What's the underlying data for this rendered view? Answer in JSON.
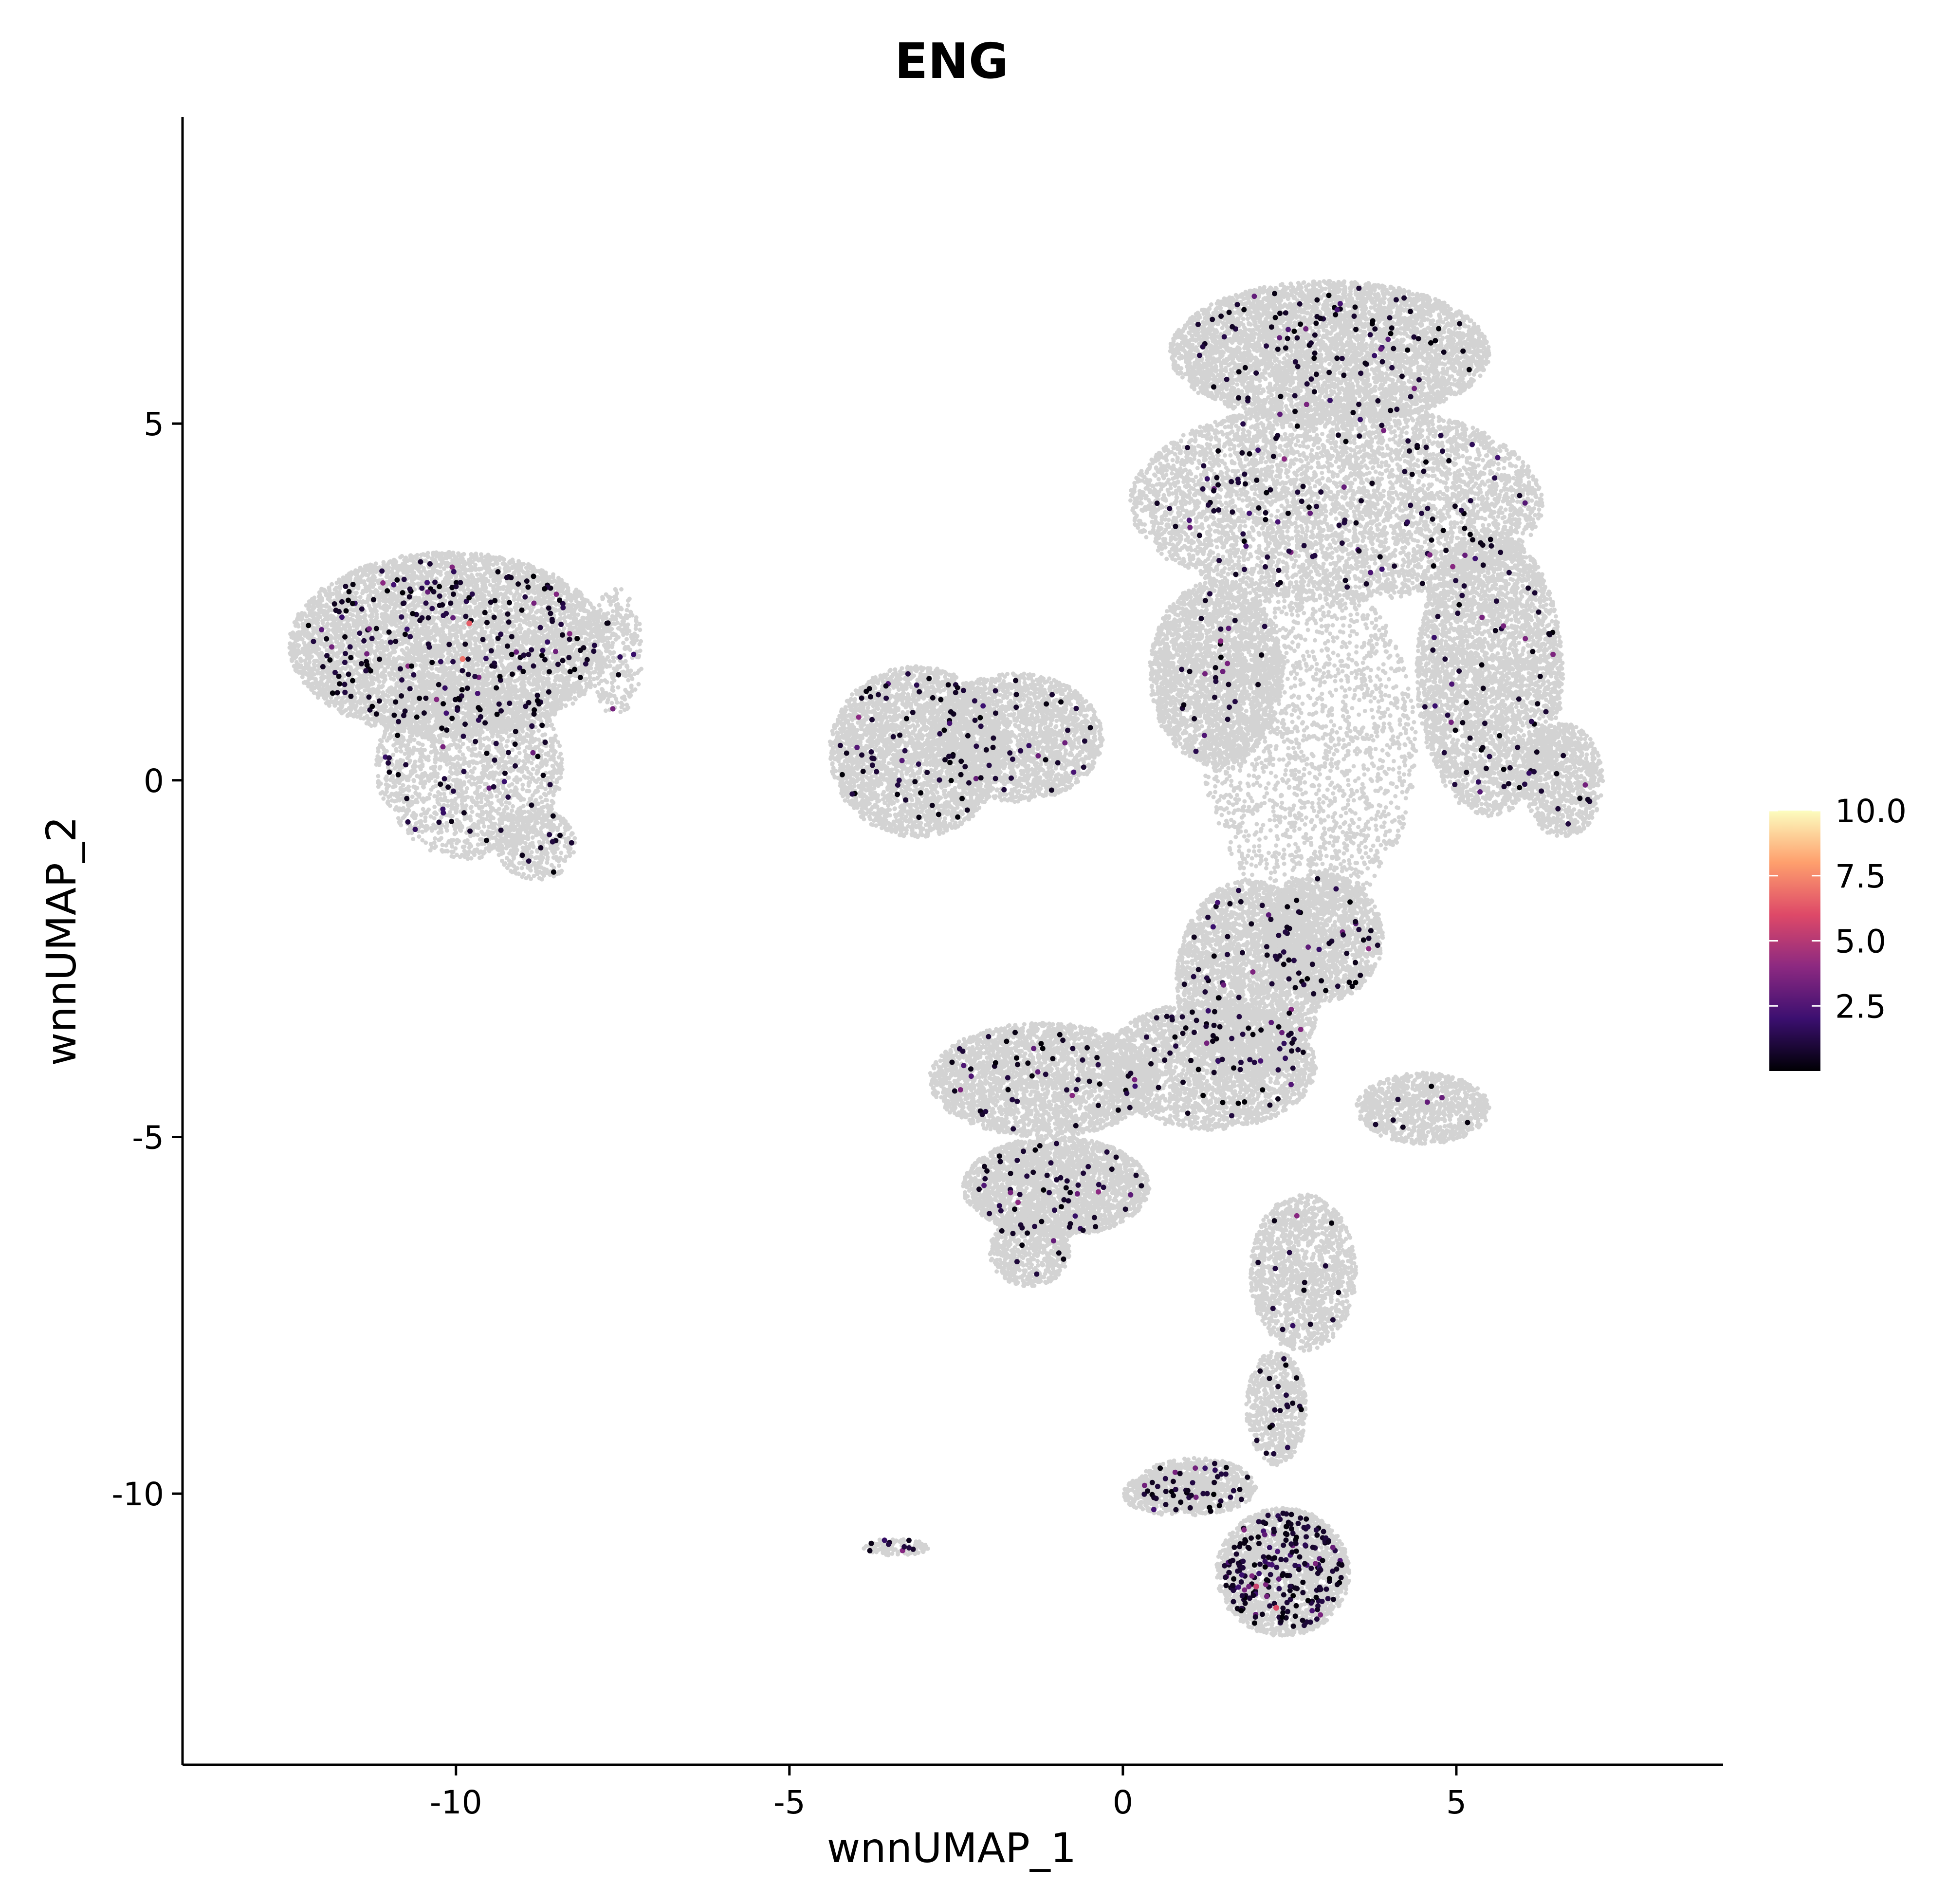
{
  "chart_data": {
    "type": "scatter",
    "title": "ENG",
    "xlabel": "wnnUMAP_1",
    "ylabel": "wnnUMAP_2",
    "xlim": [
      -14.1,
      9.0
    ],
    "ylim": [
      -13.8,
      9.3
    ],
    "x_ticks": [
      -10,
      -5,
      0,
      5
    ],
    "y_ticks": [
      5,
      0,
      -5,
      -10
    ],
    "grid": false,
    "colors": {
      "background_cells": "#d3d3d3",
      "scale": [
        "#000004",
        "#3b0f70",
        "#8c2981",
        "#de4968",
        "#fe9f6d",
        "#fcfdbf"
      ]
    },
    "legend": {
      "placement": "right",
      "min": 0,
      "max": 10,
      "labels": [
        "10.0",
        "7.5",
        "5.0",
        "2.5"
      ],
      "values": [
        10.0,
        7.5,
        5.0,
        2.5
      ]
    },
    "clusters": [
      {
        "cx": -10.1,
        "cy": 1.9,
        "rx": 2.4,
        "ry": 1.3,
        "n": 6000,
        "expr_n": 240
      },
      {
        "cx": -9.8,
        "cy": 0.2,
        "rx": 1.4,
        "ry": 1.3,
        "n": 2000,
        "expr_n": 60
      },
      {
        "cx": -8.8,
        "cy": -0.9,
        "rx": 0.6,
        "ry": 0.5,
        "n": 400,
        "expr_n": 10
      },
      {
        "cx": -7.6,
        "cy": 1.8,
        "rx": 0.4,
        "ry": 0.9,
        "n": 300,
        "expr_n": 6
      },
      {
        "cx": -3.1,
        "cy": 0.4,
        "rx": 1.3,
        "ry": 1.2,
        "n": 3000,
        "expr_n": 70
      },
      {
        "cx": -1.6,
        "cy": 0.6,
        "rx": 1.3,
        "ry": 0.9,
        "n": 2200,
        "expr_n": 40
      },
      {
        "cx": 3.1,
        "cy": 6.0,
        "rx": 2.4,
        "ry": 1.0,
        "n": 5000,
        "expr_n": 110
      },
      {
        "cx": 3.2,
        "cy": 3.9,
        "rx": 3.1,
        "ry": 1.4,
        "n": 6500,
        "expr_n": 130
      },
      {
        "cx": 5.5,
        "cy": 1.5,
        "rx": 1.1,
        "ry": 2.0,
        "n": 3800,
        "expr_n": 70
      },
      {
        "cx": 6.6,
        "cy": 0.0,
        "rx": 0.6,
        "ry": 0.8,
        "n": 900,
        "expr_n": 10
      },
      {
        "cx": 1.4,
        "cy": 1.5,
        "rx": 1.0,
        "ry": 1.3,
        "n": 2600,
        "expr_n": 30
      },
      {
        "cx": 1.9,
        "cy": -2.8,
        "rx": 1.1,
        "ry": 1.4,
        "n": 3000,
        "expr_n": 60
      },
      {
        "cx": 3.0,
        "cy": -2.2,
        "rx": 0.9,
        "ry": 0.9,
        "n": 1800,
        "expr_n": 40
      },
      {
        "cx": 1.3,
        "cy": -4.0,
        "rx": 1.6,
        "ry": 0.9,
        "n": 2500,
        "expr_n": 60
      },
      {
        "cx": -1.2,
        "cy": -4.2,
        "rx": 1.7,
        "ry": 0.8,
        "n": 2800,
        "expr_n": 50
      },
      {
        "cx": -1.0,
        "cy": -5.7,
        "rx": 1.4,
        "ry": 0.7,
        "n": 2600,
        "expr_n": 60
      },
      {
        "cx": -1.4,
        "cy": -6.6,
        "rx": 0.6,
        "ry": 0.5,
        "n": 600,
        "expr_n": 10
      },
      {
        "cx": 4.5,
        "cy": -4.6,
        "rx": 1.0,
        "ry": 0.5,
        "n": 1000,
        "expr_n": 8
      },
      {
        "cx": 2.7,
        "cy": -6.9,
        "rx": 0.8,
        "ry": 1.1,
        "n": 1500,
        "expr_n": 15
      },
      {
        "cx": 2.3,
        "cy": -8.8,
        "rx": 0.45,
        "ry": 0.8,
        "n": 700,
        "expr_n": 20
      },
      {
        "cx": 1.1,
        "cy": -9.9,
        "rx": 0.9,
        "ry": 0.4,
        "n": 800,
        "expr_n": 40
      },
      {
        "cx": 2.4,
        "cy": -11.1,
        "rx": 1.0,
        "ry": 0.9,
        "n": 2200,
        "expr_n": 230
      },
      {
        "cx": 0.7,
        "cy": -10.0,
        "rx": 0.7,
        "ry": 0.3,
        "n": 400,
        "expr_n": 10
      },
      {
        "cx": -3.4,
        "cy": -10.75,
        "rx": 0.5,
        "ry": 0.12,
        "n": 120,
        "expr_n": 10
      }
    ],
    "sparse_region": {
      "cx": 2.8,
      "cy": 0.5,
      "rx": 1.6,
      "ry": 2.4,
      "n": 2000
    },
    "expression_hotspots": [
      {
        "x": -9.8,
        "y": 2.2,
        "value": 6.5
      },
      {
        "x": -9.9,
        "y": 1.7,
        "value": 7.0
      },
      {
        "x": 2.0,
        "y": -11.3,
        "value": 5.5
      },
      {
        "x": 2.3,
        "y": -11.6,
        "value": 6.0
      }
    ]
  }
}
